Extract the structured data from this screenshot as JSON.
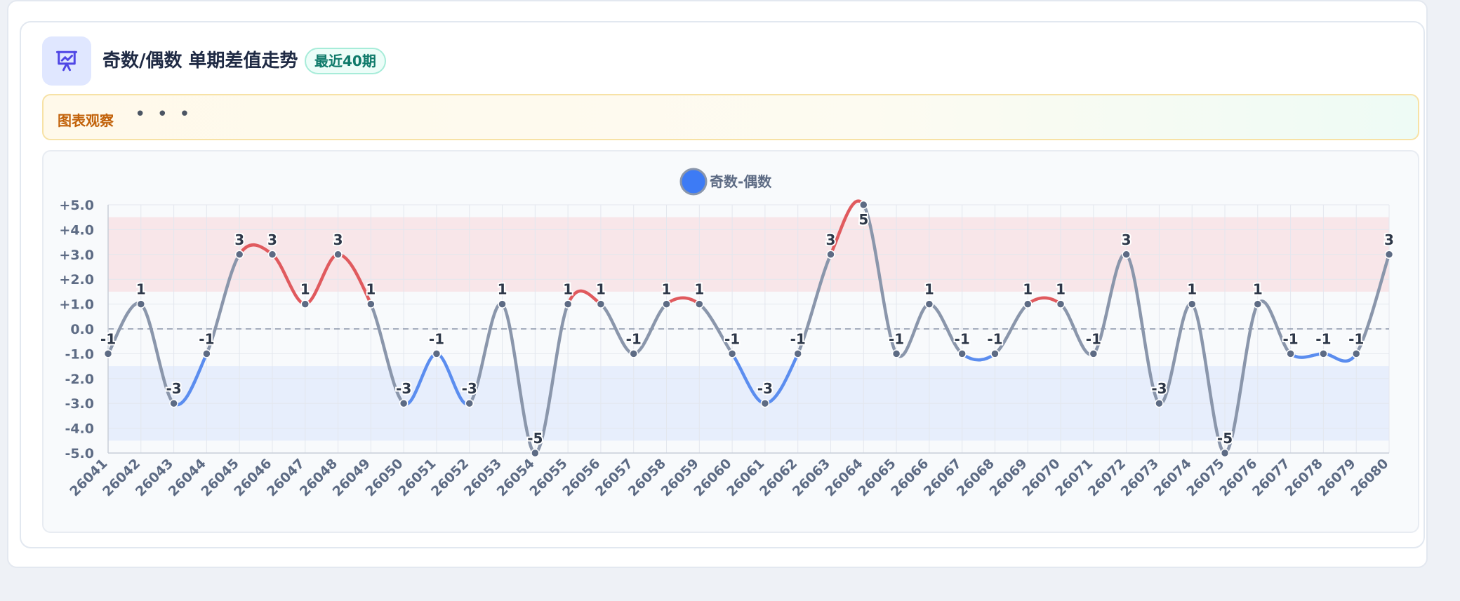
{
  "header": {
    "title": "奇数/偶数 单期差值走势",
    "badge": "最近40期",
    "icon": "presentation-chart-icon"
  },
  "observation": {
    "label": "图表观察",
    "dots": "• • •"
  },
  "colors": {
    "positive_line": "#e05a5e",
    "negative_line": "#5b8def",
    "neutral_line": "#8a96ab",
    "point": "#5d6b84",
    "positive_band": "#f8e6e9",
    "negative_band": "#e7eefc",
    "legend_marker": "#3d7bf5",
    "icon": "#4f46e5"
  },
  "chart_data": {
    "type": "line",
    "title": "",
    "xlabel": "",
    "ylabel": "",
    "legend": {
      "label": "奇数-偶数",
      "position": "top-center"
    },
    "ylim": [
      -5,
      5
    ],
    "yticks": [
      "+5.0",
      "+4.0",
      "+3.0",
      "+2.0",
      "+1.0",
      "0.0",
      "-1.0",
      "-2.0",
      "-3.0",
      "-4.0",
      "-5.0"
    ],
    "bands": [
      {
        "name": "high",
        "from": 1.5,
        "to": 4.5
      },
      {
        "name": "low",
        "from": -4.5,
        "to": -1.5
      }
    ],
    "zero_line": true,
    "grid": true,
    "categories": [
      "26041",
      "26042",
      "26043",
      "26044",
      "26045",
      "26046",
      "26047",
      "26048",
      "26049",
      "26050",
      "26051",
      "26052",
      "26053",
      "26054",
      "26055",
      "26056",
      "26057",
      "26058",
      "26059",
      "26060",
      "26061",
      "26062",
      "26063",
      "26064",
      "26065",
      "26066",
      "26067",
      "26068",
      "26069",
      "26070",
      "26071",
      "26072",
      "26073",
      "26074",
      "26075",
      "26076",
      "26077",
      "26078",
      "26079",
      "26080"
    ],
    "series": [
      {
        "name": "奇数-偶数",
        "values": [
          -1,
          1,
          -3,
          -1,
          3,
          3,
          1,
          3,
          1,
          -3,
          -1,
          -3,
          1,
          -5,
          1,
          1,
          -1,
          1,
          1,
          -1,
          -3,
          -1,
          3,
          5,
          -1,
          1,
          -1,
          -1,
          1,
          1,
          -1,
          3,
          -3,
          1,
          -5,
          1,
          -1,
          -1,
          -1,
          3
        ]
      }
    ]
  }
}
